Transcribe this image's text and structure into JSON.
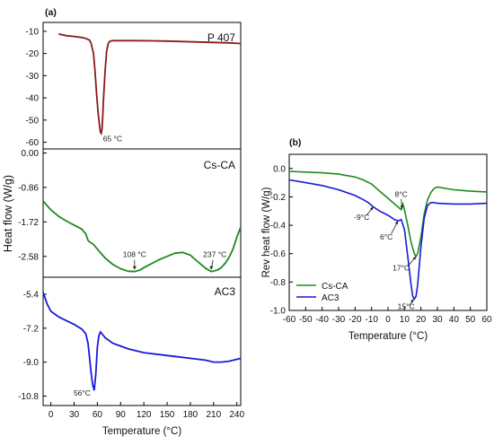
{
  "figure": {
    "panel_a_label": "(a)",
    "panel_b_label": "(b)"
  },
  "chart_data": [
    {
      "type": "line",
      "panel": "a",
      "sample_label": "P 407",
      "ylabel": "Heat flow (W/g)",
      "xlabel": "Temperature (°C)",
      "xlim": [
        -10,
        245
      ],
      "ylim": [
        -63,
        -6
      ],
      "yticks": [
        "-10",
        "-20",
        "-30",
        "-40",
        "-50",
        "-60"
      ],
      "ytick_values": [
        -10,
        -20,
        -30,
        -40,
        -50,
        -60
      ],
      "xticks": [
        "0",
        "30",
        "60",
        "90",
        "120",
        "150",
        "180",
        "210",
        "240"
      ],
      "xtick_values": [
        0,
        30,
        60,
        90,
        120,
        150,
        180,
        210,
        240
      ],
      "color": "#8b1a1a",
      "series": [
        {
          "x": [
            10,
            20,
            30,
            40,
            45,
            50,
            52,
            55,
            57,
            59,
            61,
            63,
            64,
            65,
            66,
            67,
            68,
            70,
            72,
            74,
            76,
            80,
            90,
            110,
            130,
            150,
            170,
            190,
            210,
            230,
            245
          ],
          "y": [
            -11.2,
            -12.0,
            -12.3,
            -12.8,
            -13.2,
            -14.0,
            -15.5,
            -20.0,
            -28.0,
            -38.0,
            -47.0,
            -53.0,
            -55.5,
            -56.0,
            -54.0,
            -48.0,
            -40.0,
            -28.0,
            -19.0,
            -15.5,
            -14.5,
            -14.2,
            -14.2,
            -14.2,
            -14.3,
            -14.4,
            -14.6,
            -14.8,
            -15.0,
            -15.2,
            -15.5
          ]
        }
      ],
      "annotations": [
        "65 °C"
      ]
    },
    {
      "type": "line",
      "panel": "a",
      "sample_label": "Cs-CA",
      "xlim": [
        -10,
        245
      ],
      "ylim": [
        -3.1,
        0.1
      ],
      "yticks": [
        "0.00",
        "-0.86",
        "-1.72",
        "-2.58"
      ],
      "ytick_values": [
        0.0,
        -0.86,
        -1.72,
        -2.58
      ],
      "color": "#1f8a1f",
      "series": [
        {
          "x": [
            -10,
            0,
            10,
            20,
            30,
            40,
            45,
            48,
            50,
            55,
            60,
            70,
            80,
            90,
            100,
            108,
            115,
            120,
            130,
            140,
            150,
            160,
            170,
            180,
            190,
            200,
            207,
            215,
            220,
            225,
            230,
            235,
            240,
            245
          ],
          "y": [
            -1.2,
            -1.42,
            -1.58,
            -1.7,
            -1.8,
            -1.9,
            -2.02,
            -2.18,
            -2.22,
            -2.28,
            -2.4,
            -2.62,
            -2.78,
            -2.89,
            -2.95,
            -2.96,
            -2.92,
            -2.86,
            -2.76,
            -2.66,
            -2.58,
            -2.5,
            -2.48,
            -2.55,
            -2.72,
            -2.88,
            -2.96,
            -2.92,
            -2.86,
            -2.75,
            -2.6,
            -2.4,
            -2.1,
            -1.85
          ]
        }
      ],
      "annotations": [
        "108 °C",
        "237 °C"
      ]
    },
    {
      "type": "line",
      "panel": "a",
      "sample_label": "AC3",
      "xlim": [
        -10,
        245
      ],
      "ylim": [
        -11.3,
        -4.5
      ],
      "yticks": [
        "-5.4",
        "-7.2",
        "-9.0",
        "-10.8"
      ],
      "ytick_values": [
        -5.4,
        -7.2,
        -9.0,
        -10.8
      ],
      "color": "#1a1ad6",
      "series": [
        {
          "x": [
            -10,
            -5,
            0,
            10,
            20,
            30,
            40,
            45,
            48,
            50,
            52,
            54,
            56,
            58,
            60,
            62,
            64,
            66,
            70,
            80,
            100,
            120,
            140,
            160,
            180,
            200,
            210,
            220,
            230,
            240,
            245
          ],
          "y": [
            -5.3,
            -5.9,
            -6.3,
            -6.6,
            -6.8,
            -7.0,
            -7.25,
            -7.5,
            -8.0,
            -8.8,
            -9.6,
            -10.2,
            -10.5,
            -9.6,
            -8.2,
            -7.6,
            -7.4,
            -7.5,
            -7.7,
            -8.0,
            -8.3,
            -8.5,
            -8.6,
            -8.7,
            -8.8,
            -8.9,
            -9.0,
            -9.0,
            -8.95,
            -8.85,
            -8.8
          ]
        }
      ],
      "annotations": [
        "56°C"
      ]
    },
    {
      "type": "line",
      "panel": "b",
      "ylabel": "Rev heat flow (W/g)",
      "xlabel": "Temperature (°C)",
      "xlim": [
        -60,
        60
      ],
      "ylim": [
        -1.0,
        0.1
      ],
      "yticks": [
        "0.0",
        "-0.2",
        "-0.4",
        "-0.6",
        "-0.8",
        "-1.0"
      ],
      "ytick_values": [
        0.0,
        -0.2,
        -0.4,
        -0.6,
        -0.8,
        -1.0
      ],
      "xticks": [
        "-60",
        "-50",
        "-40",
        "-30",
        "-20",
        "-10",
        "0",
        "10",
        "20",
        "30",
        "40",
        "50",
        "60"
      ],
      "xtick_values": [
        -60,
        -50,
        -40,
        -30,
        -20,
        -10,
        0,
        10,
        20,
        30,
        40,
        50,
        60
      ],
      "legend": "bottom-left",
      "series": [
        {
          "name": "Cs-CA",
          "color": "#1f8a1f",
          "x": [
            -60,
            -50,
            -40,
            -30,
            -20,
            -15,
            -10,
            -5,
            0,
            4,
            6,
            8,
            9,
            10,
            12,
            14,
            16,
            17,
            18,
            20,
            22,
            24,
            26,
            28,
            30,
            35,
            40,
            50,
            60
          ],
          "y": [
            -0.02,
            -0.025,
            -0.03,
            -0.04,
            -0.06,
            -0.08,
            -0.11,
            -0.16,
            -0.21,
            -0.25,
            -0.27,
            -0.29,
            -0.25,
            -0.29,
            -0.4,
            -0.52,
            -0.6,
            -0.62,
            -0.6,
            -0.48,
            -0.32,
            -0.22,
            -0.17,
            -0.14,
            -0.13,
            -0.14,
            -0.15,
            -0.16,
            -0.165
          ]
        },
        {
          "name": "AC3",
          "color": "#1a1ad6",
          "x": [
            -60,
            -50,
            -40,
            -30,
            -20,
            -15,
            -12,
            -9,
            -5,
            0,
            4,
            6,
            8,
            10,
            12,
            14,
            15,
            16,
            17,
            18,
            20,
            22,
            24,
            26,
            28,
            30,
            40,
            50,
            60
          ],
          "y": [
            -0.08,
            -0.1,
            -0.12,
            -0.15,
            -0.19,
            -0.22,
            -0.24,
            -0.27,
            -0.3,
            -0.33,
            -0.36,
            -0.37,
            -0.36,
            -0.43,
            -0.62,
            -0.82,
            -0.9,
            -0.92,
            -0.9,
            -0.82,
            -0.55,
            -0.35,
            -0.26,
            -0.24,
            -0.24,
            -0.245,
            -0.25,
            -0.25,
            -0.245
          ]
        }
      ],
      "annotations": [
        "8°C",
        "-9°C",
        "6°C",
        "17°C",
        "15°C"
      ]
    }
  ]
}
